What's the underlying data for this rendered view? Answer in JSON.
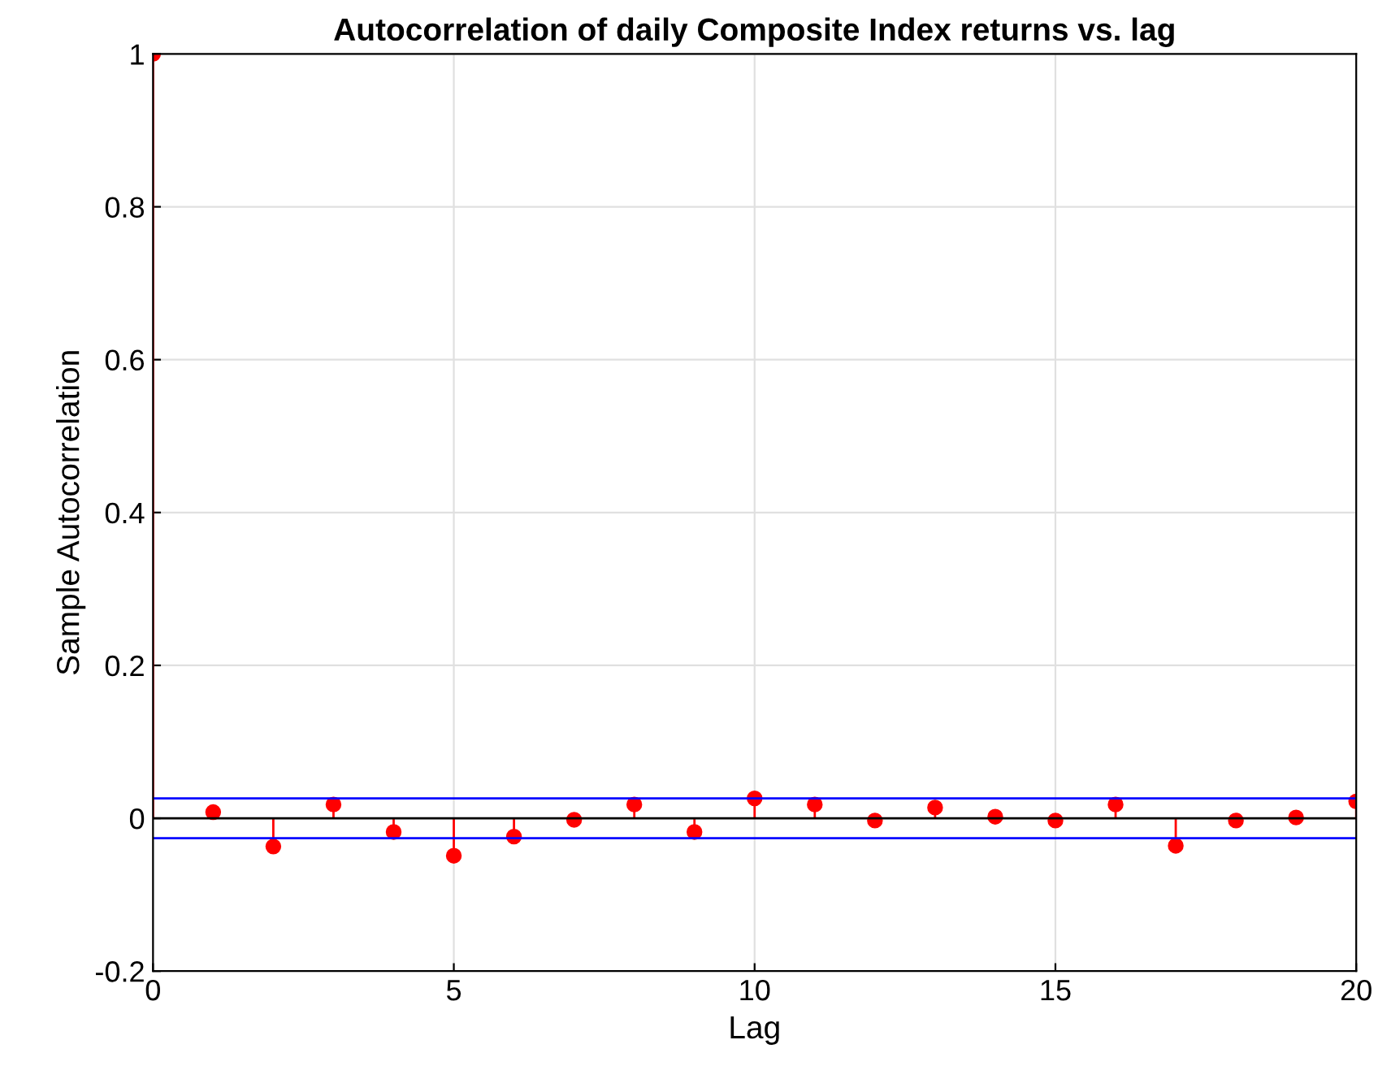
{
  "chart_data": {
    "type": "lollipop",
    "title": "Autocorrelation of daily Composite Index returns vs. lag",
    "xlabel": "Lag",
    "ylabel": "Sample Autocorrelation",
    "x": [
      0,
      1,
      2,
      3,
      4,
      5,
      6,
      7,
      8,
      9,
      10,
      11,
      12,
      13,
      14,
      15,
      16,
      17,
      18,
      19,
      20
    ],
    "series": [
      {
        "color": "#ff0000",
        "values": [
          1,
          0.008,
          -0.037,
          0.018,
          -0.018,
          -0.049,
          -0.024,
          -0.002,
          0.018,
          -0.018,
          0.026,
          0.018,
          -0.003,
          0.014,
          0.002,
          -0.003,
          0.018,
          -0.036,
          -0.003,
          0.001,
          0.022
        ]
      }
    ],
    "xlim": [
      0,
      20
    ],
    "xticks": [
      0,
      5,
      10,
      15,
      20
    ],
    "ylim": [
      -0.2,
      1
    ],
    "yticks": [
      -0.2,
      0,
      0.2,
      0.4,
      0.6,
      0.8,
      1
    ],
    "ref_lines": [
      {
        "axis": "y",
        "value": 0.026,
        "color": "#0000ff"
      },
      {
        "axis": "y",
        "value": -0.026,
        "color": "#0000ff"
      }
    ],
    "grid": true,
    "marker": "circle"
  }
}
